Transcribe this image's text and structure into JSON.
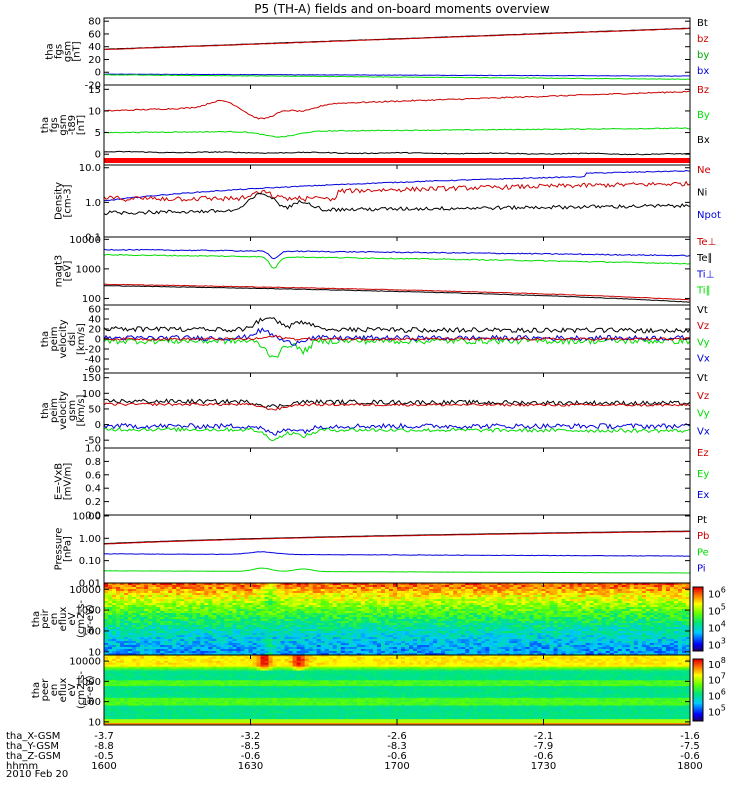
{
  "chart_data": {
    "type": "line",
    "title": "P5 (TH-A) fields and on-board moments overview",
    "date": "2010 Feb 20",
    "colors": {
      "black": "#000000",
      "red": "#cc0000",
      "green": "#00dd00",
      "blue": "#0000dd"
    },
    "panels": [
      {
        "ylabel": [
          "tha",
          "fgs",
          "gsm",
          "[nT]"
        ],
        "yscale": "linear",
        "ylim": [
          -20,
          85
        ],
        "ticks": [
          "80",
          "60",
          "40",
          "20",
          "0",
          "-20"
        ],
        "tickvals": [
          80,
          60,
          40,
          20,
          0,
          -20
        ],
        "legend": [
          {
            "label": "Bt",
            "color": "#000000"
          },
          {
            "label": "bz",
            "color": "#cc0000"
          },
          {
            "label": "by",
            "color": "#00aa00"
          },
          {
            "label": "bx",
            "color": "#0000dd"
          }
        ],
        "series": [
          {
            "name": "Bt",
            "color": "#000000",
            "shape": "ramp",
            "y0": 36,
            "y1": 69,
            "noise": 0.3
          },
          {
            "name": "bz",
            "color": "#cc0000",
            "shape": "ramp",
            "y0": 35.5,
            "y1": 68.5,
            "noise": 0.3
          },
          {
            "name": "bx",
            "color": "#0000dd",
            "shape": "ramp",
            "y0": -3,
            "y1": -6,
            "noise": 0.3
          },
          {
            "name": "by",
            "color": "#00dd00",
            "shape": "ramp",
            "y0": -4,
            "y1": -11,
            "noise": 0.4
          }
        ]
      },
      {
        "ylabel": [
          "tha",
          "fgs",
          "gsm",
          "-t89",
          "[nT]"
        ],
        "yscale": "linear",
        "ylim": [
          -2.5,
          16
        ],
        "ticks": [
          "15",
          "10",
          "5",
          "0"
        ],
        "tickvals": [
          15,
          10,
          5,
          0
        ],
        "legend": [
          {
            "label": "Bz",
            "color": "#cc0000"
          },
          {
            "label": "By",
            "color": "#00dd00"
          },
          {
            "label": "Bx",
            "color": "#000000"
          }
        ],
        "series": [
          {
            "name": "Bz",
            "color": "#cc0000",
            "shape": "bz2",
            "y0": 10,
            "y1": 14.5,
            "noise": 0.15
          },
          {
            "name": "By",
            "color": "#00dd00",
            "shape": "by2",
            "y0": 5,
            "y1": 6,
            "noise": 0.1
          },
          {
            "name": "Bx",
            "color": "#000000",
            "shape": "bx2",
            "y0": 0.5,
            "y1": 0,
            "noise": 0.1
          }
        ],
        "baseline_band": {
          "y": -1.5,
          "color": "#ff0000"
        }
      },
      {
        "ylabel": [
          "Density",
          "[cm-3]"
        ],
        "yscale": "log",
        "ylim": [
          0.1,
          12
        ],
        "ticks": [
          "10.0",
          "1.0",
          "0.1"
        ],
        "tickvals": [
          10,
          1,
          0.1
        ],
        "legend": [
          {
            "label": "Ne",
            "color": "#cc0000"
          },
          {
            "label": "Ni",
            "color": "#000000"
          },
          {
            "label": "Npot",
            "color": "#0000dd"
          }
        ],
        "series": [
          {
            "name": "Npot",
            "color": "#0000dd",
            "shape": "npot",
            "y0": 1.1,
            "y1": 6.5,
            "noise": 0.03
          },
          {
            "name": "Ne",
            "color": "#cc0000",
            "shape": "ne",
            "y0": 1.2,
            "y1": 3.5,
            "noise": 0.1
          },
          {
            "name": "Ni",
            "color": "#000000",
            "shape": "ni",
            "y0": 0.5,
            "y1": 0.8,
            "noise": 0.08
          }
        ]
      },
      {
        "ylabel": [
          "magt3",
          "[eV]"
        ],
        "yscale": "log",
        "ylim": [
          60,
          12000
        ],
        "ticks": [
          "10000",
          "1000",
          "100"
        ],
        "tickvals": [
          10000,
          1000,
          100
        ],
        "legend": [
          {
            "label": "Te⊥",
            "color": "#cc0000"
          },
          {
            "label": "Te∥",
            "color": "#000000"
          },
          {
            "label": "Ti⊥",
            "color": "#0000dd"
          },
          {
            "label": "Ti∥",
            "color": "#00dd00"
          }
        ],
        "series": [
          {
            "name": "Ti⊥",
            "color": "#0000dd",
            "shape": "tiperp",
            "y0": 4500,
            "y1": 2800,
            "noise": 0.04
          },
          {
            "name": "Ti∥",
            "color": "#00dd00",
            "shape": "tipar",
            "y0": 3000,
            "y1": 1500,
            "noise": 0.04
          },
          {
            "name": "Te⊥",
            "color": "#cc0000",
            "shape": "te",
            "y0": 300,
            "y1": 90,
            "noise": 0.02
          },
          {
            "name": "Te∥",
            "color": "#000000",
            "shape": "te",
            "y0": 270,
            "y1": 75,
            "noise": 0.02
          }
        ]
      },
      {
        "ylabel": [
          "tha",
          "peim",
          "velocity",
          "dsl",
          "[km/s]"
        ],
        "yscale": "linear",
        "ylim": [
          -68,
          68
        ],
        "ticks": [
          "60",
          "40",
          "20",
          "0",
          "-20",
          "-40",
          "-60"
        ],
        "tickvals": [
          60,
          40,
          20,
          0,
          -20,
          -40,
          -60
        ],
        "legend": [
          {
            "label": "Vt",
            "color": "#000000"
          },
          {
            "label": "Vz",
            "color": "#cc0000"
          },
          {
            "label": "Vy",
            "color": "#00dd00"
          },
          {
            "label": "Vx",
            "color": "#0000dd"
          }
        ],
        "series": [
          {
            "name": "Vt",
            "color": "#000000",
            "shape": "vt",
            "y0": 15,
            "y1": 12,
            "noise": 8
          },
          {
            "name": "Vy",
            "color": "#00dd00",
            "shape": "vy",
            "y0": -4,
            "y1": -4,
            "noise": 6
          },
          {
            "name": "Vx",
            "color": "#0000dd",
            "shape": "vx",
            "y0": 2,
            "y1": 2,
            "noise": 5
          },
          {
            "name": "Vz",
            "color": "#cc0000",
            "shape": "vz",
            "y0": 0,
            "y1": 0,
            "noise": 2.5
          }
        ]
      },
      {
        "ylabel": [
          "tha",
          "peim",
          "velocity",
          "gsm",
          "[km/s]"
        ],
        "yscale": "linear",
        "ylim": [
          -75,
          165
        ],
        "ticks": [
          "150",
          "100",
          "50",
          "0",
          "-50"
        ],
        "tickvals": [
          150,
          100,
          50,
          0,
          -50
        ],
        "legend": [
          {
            "label": "Vt",
            "color": "#000000"
          },
          {
            "label": "Vz",
            "color": "#cc0000"
          },
          {
            "label": "Vy",
            "color": "#00dd00"
          },
          {
            "label": "Vx",
            "color": "#0000dd"
          }
        ],
        "series": [
          {
            "name": "Vt",
            "color": "#000000",
            "shape": "vt6",
            "y0": 75,
            "y1": 68,
            "noise": 7
          },
          {
            "name": "Vz",
            "color": "#cc0000",
            "shape": "vz6",
            "y0": 65,
            "y1": 62,
            "noise": 4
          },
          {
            "name": "Vx",
            "color": "#0000dd",
            "shape": "vx6",
            "y0": -5,
            "y1": -5,
            "noise": 8
          },
          {
            "name": "Vy",
            "color": "#00dd00",
            "shape": "vy6",
            "y0": -15,
            "y1": -20,
            "noise": 6
          }
        ]
      },
      {
        "ylabel": [
          "E=-VxB",
          "[mV/m]"
        ],
        "yscale": "linear",
        "ylim": [
          0,
          1.0
        ],
        "ticks": [
          "1.0",
          "0.8",
          "0.6",
          "0.4",
          "0.2",
          "0.0"
        ],
        "tickvals": [
          1.0,
          0.8,
          0.6,
          0.4,
          0.2,
          0.0
        ],
        "legend": [
          {
            "label": "Ez",
            "color": "#cc0000"
          },
          {
            "label": "Ey",
            "color": "#00dd00"
          },
          {
            "label": "Ex",
            "color": "#0000dd"
          }
        ],
        "series": []
      },
      {
        "ylabel": [
          "Pressure",
          "[nPa]"
        ],
        "yscale": "log",
        "ylim": [
          0.01,
          11
        ],
        "ticks": [
          "10.00",
          "1.00",
          "0.10",
          "0.01"
        ],
        "tickvals": [
          10,
          1,
          0.1,
          0.01
        ],
        "legend": [
          {
            "label": "Pt",
            "color": "#000000"
          },
          {
            "label": "Pb",
            "color": "#cc0000"
          },
          {
            "label": "Pe",
            "color": "#00dd00"
          },
          {
            "label": "Pi",
            "color": "#0000dd"
          }
        ],
        "series": [
          {
            "name": "Pt",
            "color": "#000000",
            "shape": "ramp",
            "y0": 0.58,
            "y1": 2.1,
            "noise": 0.005
          },
          {
            "name": "Pb",
            "color": "#cc0000",
            "shape": "ramp",
            "y0": 0.55,
            "y1": 2.0,
            "noise": 0.005
          },
          {
            "name": "Pi",
            "color": "#0000dd",
            "shape": "pi",
            "y0": 0.2,
            "y1": 0.16,
            "noise": 0.02
          },
          {
            "name": "Pe",
            "color": "#00dd00",
            "shape": "pe",
            "y0": 0.035,
            "y1": 0.028,
            "noise": 0.01
          }
        ]
      },
      {
        "type": "spectrogram",
        "ylabel": [
          "tha",
          "peir",
          "en",
          "eflux",
          "eV",
          "(cm2-s-",
          "sr-eV)"
        ],
        "yscale": "log",
        "ylim": [
          7,
          20000
        ],
        "ticks": [
          "10000",
          "1000",
          "100",
          "10"
        ],
        "tickvals": [
          10000,
          1000,
          100,
          10
        ],
        "colorbar_ticks": [
          {
            "base": "10",
            "exp": "6"
          },
          {
            "base": "10",
            "exp": "5"
          },
          {
            "base": "10",
            "exp": "4"
          },
          {
            "base": "10",
            "exp": "3"
          }
        ],
        "colorbar_range": [
          2.6,
          6.4
        ],
        "spec": "ion"
      },
      {
        "type": "spectrogram",
        "ylabel": [
          "tha",
          "peer",
          "en",
          "eflux",
          "eV",
          "(cm2-s-",
          "sr-eV)"
        ],
        "yscale": "log",
        "ylim": [
          7,
          20000
        ],
        "ticks": [
          "10000",
          "1000",
          "100",
          "10"
        ],
        "tickvals": [
          10000,
          1000,
          100,
          10
        ],
        "colorbar_ticks": [
          {
            "base": "10",
            "exp": "8"
          },
          {
            "base": "10",
            "exp": "7"
          },
          {
            "base": "10",
            "exp": "6"
          },
          {
            "base": "10",
            "exp": "5"
          }
        ],
        "colorbar_range": [
          4.4,
          8.3
        ],
        "spec": "electron"
      }
    ],
    "bottom": {
      "labels": [
        "tha_X-GSM",
        "tha_Y-GSM",
        "tha_Z-GSM",
        "hhmm"
      ],
      "columns": [
        [
          "-3.7",
          "-8.8",
          "-0.5",
          "1600"
        ],
        [
          "-3.2",
          "-8.5",
          "-0.6",
          "1630"
        ],
        [
          "-2.6",
          "-8.3",
          "-0.6",
          "1700"
        ],
        [
          "-2.1",
          "-7.9",
          "-0.6",
          "1730"
        ],
        [
          "-1.6",
          "-7.5",
          "-0.6",
          "1800"
        ]
      ],
      "x_hhmm_minutes": [
        960,
        990,
        1020,
        1050,
        1080
      ]
    }
  }
}
